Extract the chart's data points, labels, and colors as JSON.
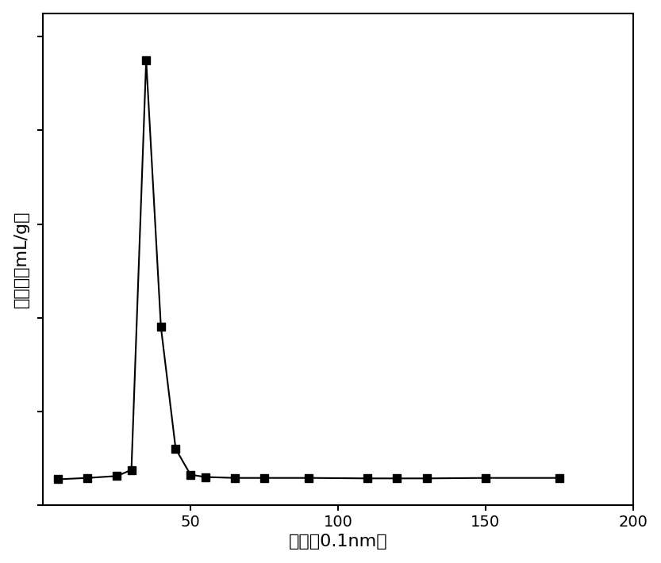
{
  "x": [
    5,
    15,
    25,
    30,
    35,
    40,
    45,
    50,
    55,
    65,
    75,
    90,
    110,
    120,
    130,
    150,
    175
  ],
  "y": [
    0.055,
    0.058,
    0.062,
    0.075,
    0.95,
    0.38,
    0.12,
    0.065,
    0.06,
    0.058,
    0.058,
    0.058,
    0.057,
    0.057,
    0.057,
    0.058,
    0.058
  ],
  "xlim": [
    0,
    200
  ],
  "ylim": [
    0.0,
    1.05
  ],
  "xticks": [
    50,
    100,
    150,
    200
  ],
  "xlabel": "孔径（0.1nm）",
  "ylabel": "孔体积（mL/g）",
  "line_color": "#000000",
  "marker": "s",
  "marker_color": "#000000",
  "marker_size": 7,
  "linewidth": 1.5,
  "bg_color": "#ffffff",
  "xlabel_fontsize": 16,
  "ylabel_fontsize": 16,
  "tick_fontsize": 14
}
